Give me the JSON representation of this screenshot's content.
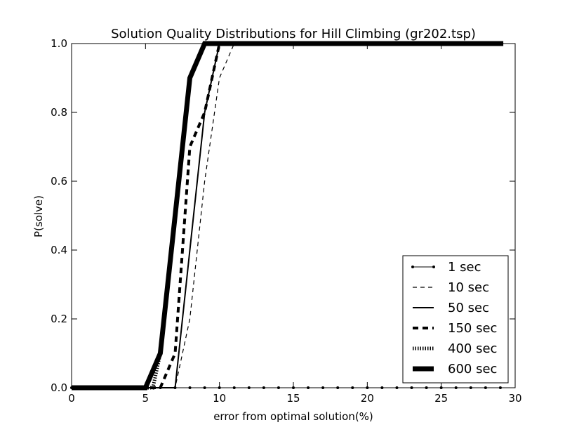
{
  "chart_data": {
    "type": "line",
    "title": "Solution Quality Distributions for Hill Climbing (gr202.tsp)",
    "xlabel": "error from optimal solution(%)",
    "ylabel": "P(solve)",
    "xlim": [
      0,
      30
    ],
    "ylim": [
      0,
      1.0
    ],
    "x_ticks": [
      0,
      5,
      10,
      15,
      20,
      25,
      30
    ],
    "y_ticks": [
      0.0,
      0.2,
      0.4,
      0.6,
      0.8,
      1.0
    ],
    "x_tick_labels": [
      "0",
      "5",
      "10",
      "15",
      "20",
      "25",
      "30"
    ],
    "y_tick_labels": [
      "0.0",
      "0.2",
      "0.4",
      "0.6",
      "0.8",
      "1.0"
    ],
    "grid": false,
    "legend_position": "lower-right",
    "series": [
      {
        "name": "1 sec",
        "style": "line-dots",
        "x": [
          0,
          1,
          2,
          3,
          4,
          5,
          6,
          7,
          8,
          9,
          10,
          11,
          12,
          13,
          14,
          15,
          16,
          17,
          18,
          19,
          20,
          21,
          22,
          23,
          24,
          25,
          26,
          27,
          28,
          29
        ],
        "y": [
          0,
          0,
          0,
          0,
          0,
          0,
          0,
          0,
          0,
          0,
          0,
          0,
          0,
          0,
          0,
          0,
          0,
          0,
          0,
          0,
          0,
          0,
          0,
          0,
          0,
          0,
          0,
          0,
          0,
          0
        ]
      },
      {
        "name": "10 sec",
        "style": "dashed",
        "x": [
          0,
          7,
          8,
          9,
          10,
          11,
          29.2
        ],
        "y": [
          0,
          0,
          0.2,
          0.6,
          0.9,
          1.0,
          1.0
        ]
      },
      {
        "name": "50 sec",
        "style": "solid",
        "x": [
          0,
          7,
          8,
          9,
          10,
          29.2
        ],
        "y": [
          0,
          0,
          0.4,
          0.8,
          1.0,
          1.0
        ]
      },
      {
        "name": "150 sec",
        "style": "thick-dashed",
        "x": [
          0,
          6,
          7,
          8,
          9,
          10,
          29.2
        ],
        "y": [
          0,
          0,
          0.1,
          0.7,
          0.8,
          1.0,
          1.0
        ]
      },
      {
        "name": "400 sec",
        "style": "dotted-thick",
        "x": [
          0,
          5.5,
          6,
          7,
          8,
          9,
          29.2
        ],
        "y": [
          0,
          0,
          0.1,
          0.5,
          0.9,
          1.0,
          1.0
        ]
      },
      {
        "name": "600 sec",
        "style": "very-thick",
        "x": [
          0,
          5,
          6,
          7,
          8,
          9,
          29.2
        ],
        "y": [
          0,
          0,
          0.1,
          0.5,
          0.9,
          1.0,
          1.0
        ]
      }
    ]
  },
  "colors": {
    "line": "#000000",
    "background": "#ffffff"
  }
}
